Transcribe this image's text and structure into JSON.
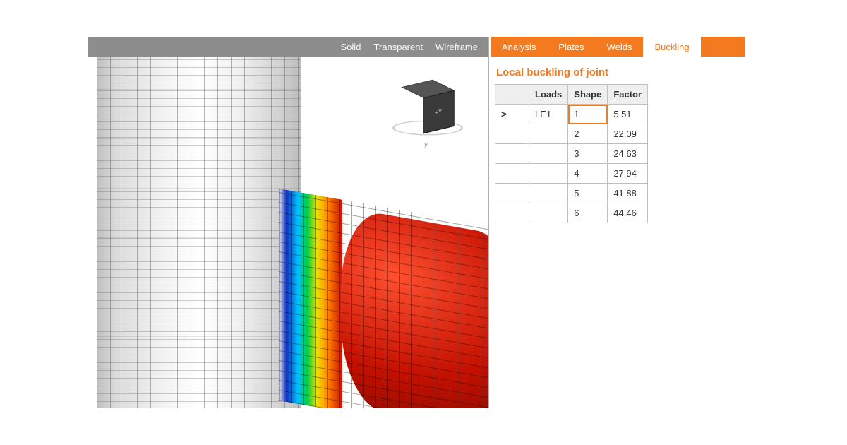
{
  "viewport": {
    "toolbar": {
      "solid": "Solid",
      "transparent": "Transparent",
      "wireframe": "Wireframe"
    },
    "gizmo": {
      "front_label": "+Y",
      "right_label": "",
      "top_label": "",
      "axis_hint": "y"
    },
    "rainbow_colors": [
      "#efefef",
      "#1030c0",
      "#00c0ff",
      "#00d040",
      "#f0e000",
      "#ff8000",
      "#d01000"
    ],
    "column_color": "#c9c9c9",
    "mesh_line_color": "#4d4d4d"
  },
  "tabs": {
    "items": [
      {
        "label": "Analysis",
        "active": false
      },
      {
        "label": "Plates",
        "active": false
      },
      {
        "label": "Welds",
        "active": false
      },
      {
        "label": "Buckling",
        "active": true
      }
    ]
  },
  "panel": {
    "title": "Local buckling of joint",
    "columns": {
      "loads": "Loads",
      "shape": "Shape",
      "factor": "Factor"
    },
    "rows": [
      {
        "selected": true,
        "loads": "LE1",
        "shape": "1",
        "factor": "5.51"
      },
      {
        "selected": false,
        "loads": "",
        "shape": "2",
        "factor": "22.09"
      },
      {
        "selected": false,
        "loads": "",
        "shape": "3",
        "factor": "24.63"
      },
      {
        "selected": false,
        "loads": "",
        "shape": "4",
        "factor": "27.94"
      },
      {
        "selected": false,
        "loads": "",
        "shape": "5",
        "factor": "41.88"
      },
      {
        "selected": false,
        "loads": "",
        "shape": "6",
        "factor": "44.46"
      }
    ]
  },
  "colors": {
    "accent": "#f47a20",
    "toolbar_bg": "#8d8d8d",
    "grid_border": "#bfbfbf"
  }
}
